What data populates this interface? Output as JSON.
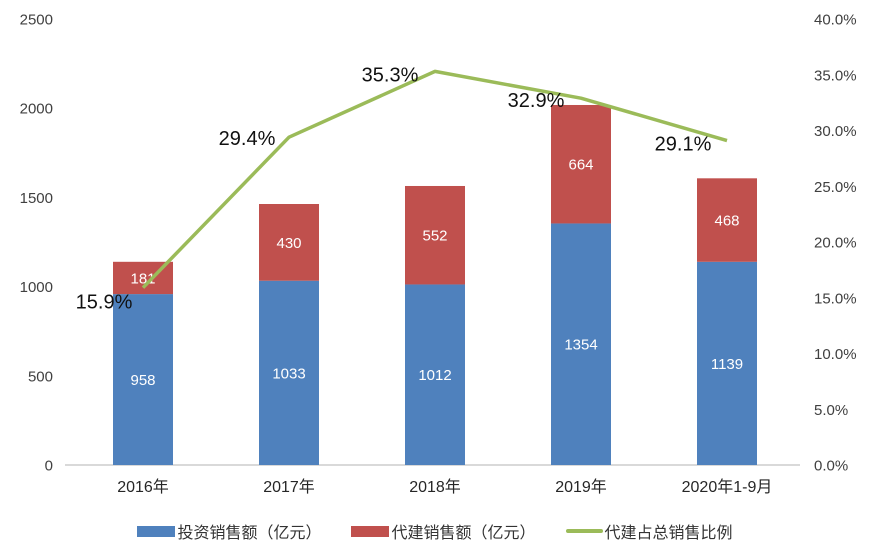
{
  "chart_data": {
    "type": "bar",
    "subtype": "stacked-bars-with-line-overlay",
    "title": "",
    "categories": [
      "2016年",
      "2017年",
      "2018年",
      "2019年",
      "2020年1-9月"
    ],
    "series": [
      {
        "name": "投资销售额（亿元）",
        "kind": "bar",
        "axis": "left",
        "color": "#4F81BD",
        "values": [
          958,
          1033,
          1012,
          1354,
          1139
        ]
      },
      {
        "name": "代建销售额（亿元）",
        "kind": "bar",
        "axis": "left",
        "color": "#C0504D",
        "values": [
          181,
          430,
          552,
          664,
          468
        ]
      },
      {
        "name": "代建占总销售比例",
        "kind": "line",
        "axis": "right",
        "color": "#9BBB59",
        "values": [
          15.9,
          29.4,
          35.3,
          32.9,
          29.1
        ],
        "point_labels": [
          "15.9%",
          "29.4%",
          "35.3%",
          "32.9%",
          "29.1%"
        ]
      }
    ],
    "stacked": true,
    "grid": false,
    "legend_position": "bottom",
    "left_axis": {
      "min": 0,
      "max": 2500,
      "step": 500,
      "tick_labels": [
        "0",
        "500",
        "1000",
        "1500",
        "2000",
        "2500"
      ]
    },
    "right_axis": {
      "min": 0,
      "max": 40,
      "step": 5,
      "tick_labels": [
        "0.0%",
        "5.0%",
        "10.0%",
        "15.0%",
        "20.0%",
        "25.0%",
        "30.0%",
        "35.0%",
        "40.0%"
      ]
    },
    "colors": {
      "bar_label_text": "#ffffff",
      "axis_line": "#d9d9d9",
      "tick_text": "#404040",
      "category_text": "#262626",
      "point_label_text": "#111111"
    }
  }
}
